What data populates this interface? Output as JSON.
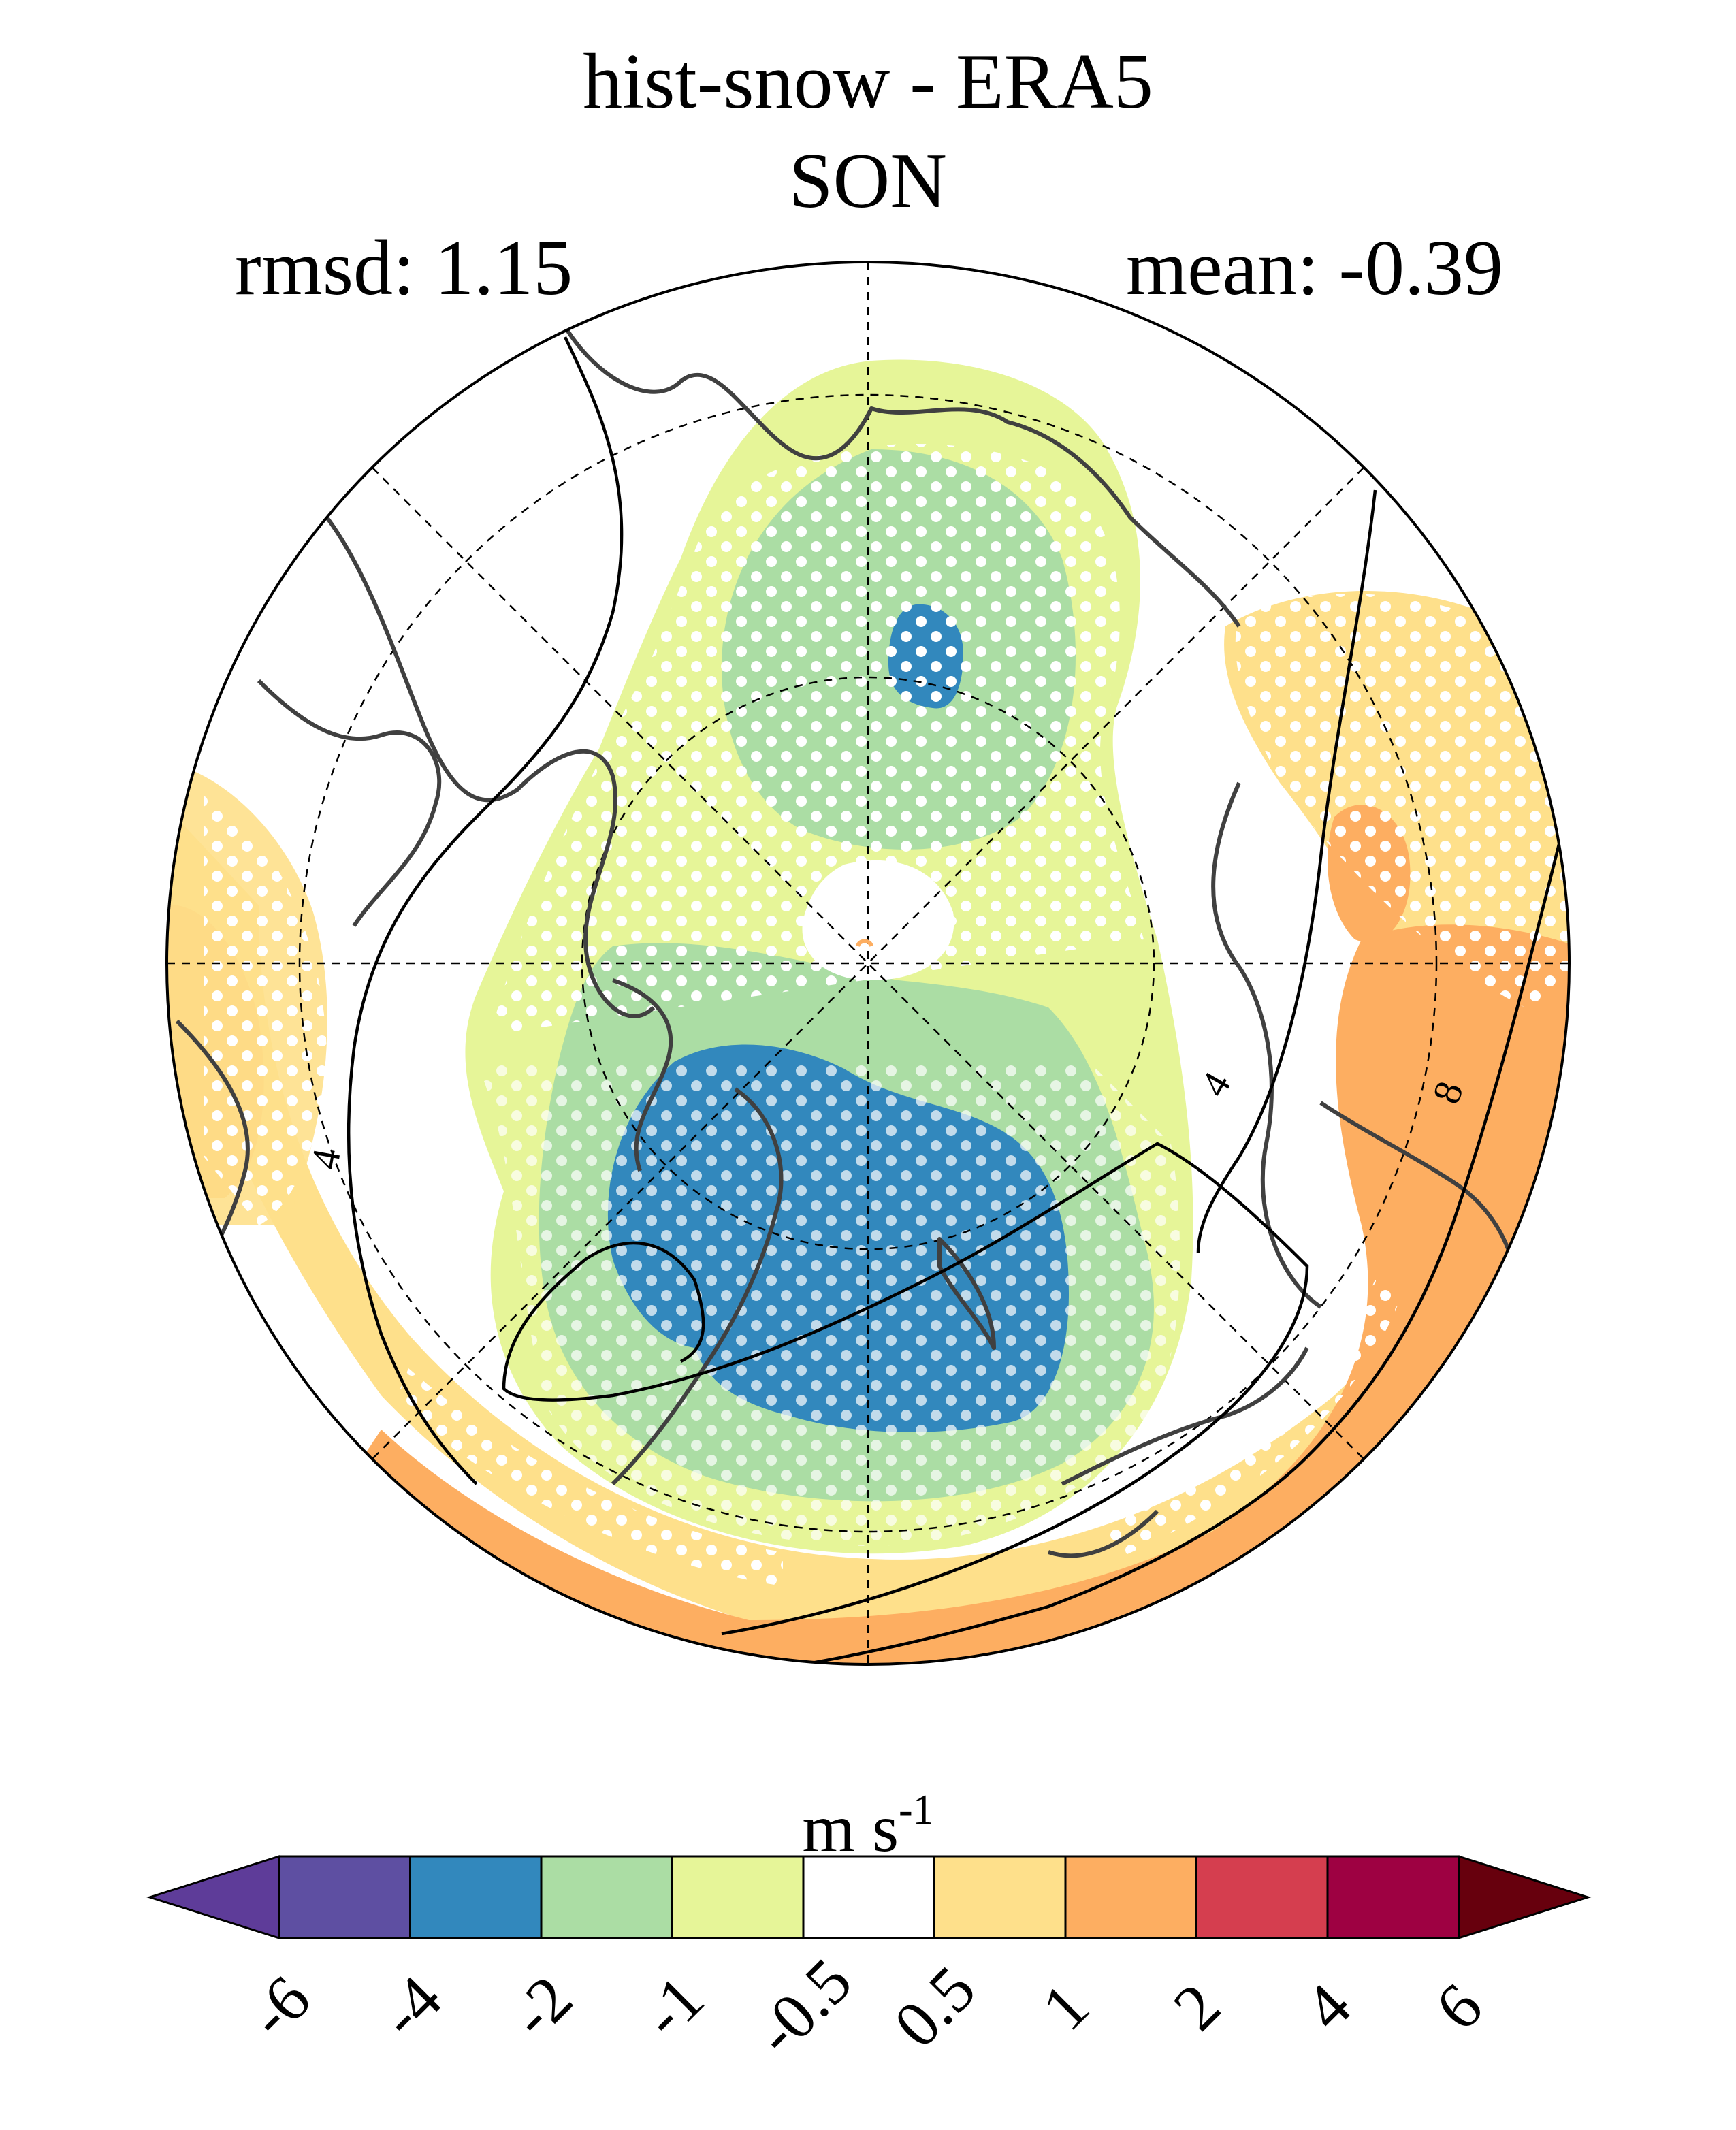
{
  "title": "hist-snow - ERA5",
  "season": "SON",
  "rmsd_label": "rmsd: 1.15",
  "mean_label": "mean: -0.39",
  "colorbar": {
    "unit_base": "m s",
    "unit_exp": "-1",
    "ticks": [
      "-6",
      "-4",
      "-2",
      "-1",
      "-0.5",
      "0.5",
      "1",
      "2",
      "4",
      "6"
    ],
    "colors": [
      "#5e3c99",
      "#5e4fa2",
      "#3288bd",
      "#abdda4",
      "#e6f598",
      "#ffffff",
      "#fee08b",
      "#fdae61",
      "#d53e4f",
      "#9e0142",
      "#67000d"
    ]
  },
  "contour_labels": [
    "4",
    "4",
    "8"
  ],
  "projection": "north polar stereographic",
  "stippling": "significance dots (white)"
}
